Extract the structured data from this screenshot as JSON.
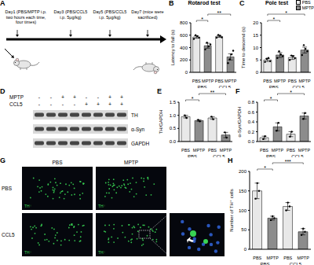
{
  "timeline": {
    "panel_label": "A",
    "events": [
      "Day1 (PBS/MPTP i.p. two hours each time, four times)",
      "Day3 (PBS/CCL5 i.p. 5μg/kg)",
      "Day5 (PBS/CCL5 i.p. 5μg/kg)",
      "Day7 (mice were sacrificed)"
    ]
  },
  "blot": {
    "panel_label": "D",
    "conditions": [
      {
        "name": "MPTP",
        "signs": [
          "-",
          "-",
          "+",
          "+",
          "-",
          "-",
          "+",
          "+"
        ]
      },
      {
        "name": "CCL5",
        "signs": [
          "-",
          "-",
          "-",
          "-",
          "+",
          "+",
          "+",
          "+"
        ]
      }
    ],
    "bands": [
      "TH",
      "α-Syn",
      "GAPDH"
    ]
  },
  "images": {
    "panel_label": "G",
    "columns": [
      "PBS",
      "MPTP"
    ],
    "rows": [
      "PBS",
      "CCL5"
    ],
    "stain": "TH⁺"
  },
  "chart_data": [
    {
      "panel_label": "B",
      "type": "bar",
      "title": "Rotarod test",
      "y_label": "Latency to fall (s)",
      "categories": [
        "PBS",
        "MPTP",
        "PBS",
        "MPTP"
      ],
      "groups": [
        "PBS",
        "CCL5"
      ],
      "series": [
        {
          "name": "PBS",
          "color": "#e8e8e8",
          "values": [
            570,
            null,
            580,
            null
          ],
          "errors": [
            20,
            null,
            15,
            null
          ],
          "points": [
            [
              540,
              600,
              585,
              560
            ],
            null,
            [
              560,
              605,
              590,
              565
            ],
            null
          ]
        },
        {
          "name": "MPTP",
          "color": "#8c8c8c",
          "values": [
            null,
            430,
            null,
            250
          ],
          "errors": [
            null,
            40,
            null,
            50
          ],
          "points": [
            null,
            [
              370,
              480,
              420,
              450
            ],
            null,
            [
              150,
              210,
              290,
              350
            ]
          ]
        }
      ],
      "ylim": [
        0,
        800
      ],
      "yticks": [
        0,
        200,
        400,
        600,
        800
      ],
      "annotations": [
        {
          "text": "*",
          "from": 0,
          "to": 1
        },
        {
          "text": "**",
          "from": 1,
          "to": 3
        }
      ]
    },
    {
      "panel_label": "C",
      "type": "bar",
      "title": "Pole test",
      "y_label": "Time to descend (s)",
      "categories": [
        "PBS",
        "MPTP",
        "PBS",
        "MPTP"
      ],
      "groups": [
        "PBS",
        "CCL5"
      ],
      "series": [
        {
          "name": "PBS",
          "color": "#e8e8e8",
          "values": [
            5,
            null,
            6,
            null
          ],
          "errors": [
            0.6,
            null,
            0.8,
            null
          ],
          "points": [
            [
              4.2,
              5.5,
              5.8,
              4.5
            ],
            null,
            [
              5,
              6.8,
              6.5,
              5.7
            ],
            null
          ]
        },
        {
          "name": "MPTP",
          "color": "#8c8c8c",
          "values": [
            null,
            7,
            null,
            9
          ],
          "errors": [
            null,
            1,
            null,
            1.2
          ],
          "points": [
            null,
            [
              5.8,
              8.5,
              7.2,
              6.5
            ],
            null,
            [
              7,
              11,
              9.5,
              8.5
            ]
          ]
        }
      ],
      "ylim": [
        0,
        20
      ],
      "yticks": [
        0,
        5,
        10,
        15,
        20
      ],
      "legend": "upper right",
      "annotations": [
        {
          "text": "*",
          "from": 0,
          "to": 1
        },
        {
          "text": "*",
          "from": 0,
          "to": 3
        }
      ]
    },
    {
      "panel_label": "E",
      "type": "bar",
      "y_label": "TH/GAPDH",
      "categories": [
        "PBS",
        "MPTP",
        "PBS",
        "MPTP"
      ],
      "groups": [
        "PBS",
        "CCL5"
      ],
      "series": [
        {
          "name": "PBS",
          "color": "#e8e8e8",
          "values": [
            0.95,
            null,
            0.9,
            null
          ],
          "errors": [
            0.05,
            null,
            0.05,
            null
          ],
          "points": [
            [
              1.0,
              0.9
            ],
            null,
            [
              0.95,
              0.85
            ],
            null
          ]
        },
        {
          "name": "MPTP",
          "color": "#8c8c8c",
          "values": [
            null,
            0.8,
            null,
            0.25
          ],
          "errors": [
            null,
            0.03,
            null,
            0.1
          ],
          "points": [
            null,
            [
              0.83,
              0.77
            ],
            null,
            [
              0.35,
              0.15
            ]
          ]
        }
      ],
      "ylim": [
        0,
        1.5
      ],
      "yticks": [
        {
          "value": 0,
          "label": "0.0"
        },
        0.5,
        {
          "value": 1,
          "label": "1.0"
        },
        1.5
      ],
      "annotations": [
        {
          "text": "*",
          "from": 0,
          "to": 1
        },
        {
          "text": "**",
          "from": 1,
          "to": 3
        }
      ]
    },
    {
      "panel_label": "F",
      "type": "bar",
      "y_label": "α-Syn/GAPDH",
      "categories": [
        "PBS",
        "MPTP",
        "PBS",
        "MPTP"
      ],
      "groups": [
        "PBS",
        "CCL5"
      ],
      "series": [
        {
          "name": "PBS",
          "color": "#e8e8e8",
          "values": [
            0.08,
            null,
            0.15,
            null
          ],
          "errors": [
            0.03,
            null,
            0.05,
            null
          ],
          "points": [
            [
              0.05,
              0.11
            ],
            null,
            [
              0.1,
              0.2
            ],
            null
          ]
        },
        {
          "name": "MPTP",
          "color": "#8c8c8c",
          "values": [
            null,
            0.3,
            null,
            0.52
          ],
          "errors": [
            null,
            0.08,
            null,
            0.06
          ],
          "points": [
            null,
            [
              0.22,
              0.38
            ],
            null,
            [
              0.46,
              0.58
            ]
          ]
        }
      ],
      "ylim": [
        0,
        0.8
      ],
      "yticks": [
        {
          "value": 0,
          "label": "0.0"
        },
        0.2,
        0.4,
        0.6,
        0.8
      ],
      "annotations": [
        {
          "text": "*",
          "from": 0,
          "to": 1
        },
        {
          "text": "*",
          "from": 1,
          "to": 3
        }
      ]
    },
    {
      "panel_label": "H",
      "type": "bar",
      "y_label": "Number of TH⁺ cells",
      "categories": [
        "PBS",
        "MPTP",
        "PBS",
        "MPTP"
      ],
      "groups": [
        "PBS",
        "CCL5"
      ],
      "series": [
        {
          "name": "PBS",
          "color": "#e8e8e8",
          "values": [
            150,
            null,
            110,
            null
          ],
          "errors": [
            20,
            null,
            10,
            null
          ],
          "points": [
            [
              130,
              170,
              150
            ],
            null,
            [
              100,
              120,
              110
            ],
            null
          ]
        },
        {
          "name": "MPTP",
          "color": "#8c8c8c",
          "values": [
            null,
            80,
            null,
            45
          ],
          "errors": [
            null,
            5,
            null,
            8
          ],
          "points": [
            null,
            [
              75,
              85,
              80
            ],
            null,
            [
              37,
              53,
              45
            ]
          ]
        }
      ],
      "ylim": [
        0,
        200
      ],
      "yticks": [
        0,
        50,
        100,
        150,
        200
      ],
      "annotations": [
        {
          "text": "*",
          "from": 0,
          "to": 1
        },
        {
          "text": "***",
          "from": 1,
          "to": 3
        }
      ]
    }
  ]
}
